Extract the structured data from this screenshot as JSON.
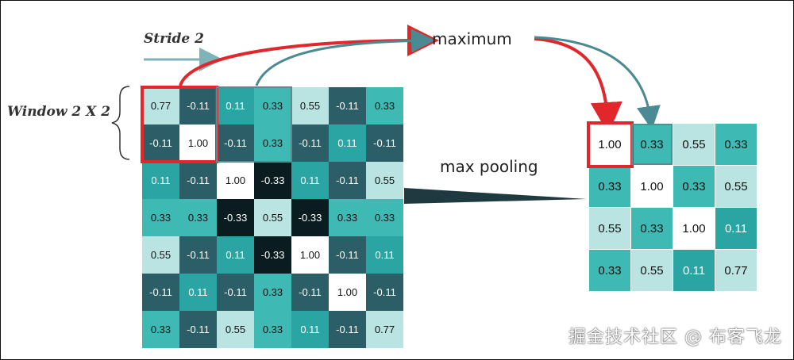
{
  "labels": {
    "stride": "Stride 2",
    "window": "Window 2 X 2",
    "maximum": "maximum",
    "max_pooling": "max pooling"
  },
  "watermark": "掘金技术社区 @ 布客飞龙",
  "colors": {
    "red": "#e1262c",
    "arrow_teal": "#4a8a92",
    "stride_arrow": "#7fb3b7",
    "pyramid": "#1e3a40"
  },
  "input_matrix": [
    [
      "0.77",
      "-0.11",
      "0.11",
      "0.33",
      "0.55",
      "-0.11",
      "0.33"
    ],
    [
      "-0.11",
      "1.00",
      "-0.11",
      "0.33",
      "-0.11",
      "0.11",
      "-0.11"
    ],
    [
      "0.11",
      "-0.11",
      "1.00",
      "-0.33",
      "0.11",
      "-0.11",
      "0.55"
    ],
    [
      "0.33",
      "0.33",
      "-0.33",
      "0.55",
      "-0.33",
      "0.33",
      "0.33"
    ],
    [
      "0.55",
      "-0.11",
      "0.11",
      "-0.33",
      "1.00",
      "-0.11",
      "0.11"
    ],
    [
      "-0.11",
      "0.11",
      "-0.11",
      "0.33",
      "-0.11",
      "1.00",
      "-0.11"
    ],
    [
      "0.33",
      "-0.11",
      "0.55",
      "0.33",
      "0.11",
      "-0.11",
      "0.77"
    ]
  ],
  "output_matrix": [
    [
      "1.00",
      "0.33",
      "0.55",
      "0.33"
    ],
    [
      "0.33",
      "1.00",
      "0.33",
      "0.55"
    ],
    [
      "0.55",
      "0.33",
      "1.00",
      "0.11"
    ],
    [
      "0.33",
      "0.55",
      "0.11",
      "0.77"
    ]
  ]
}
